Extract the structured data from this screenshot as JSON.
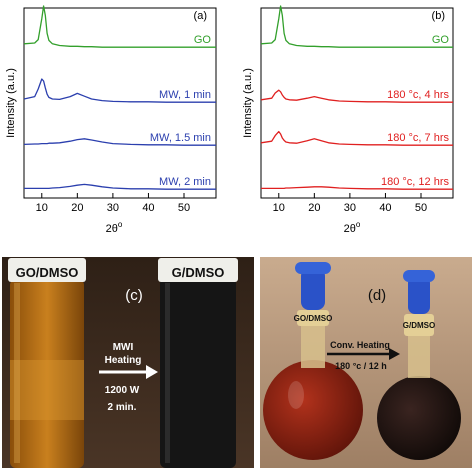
{
  "chart_data": [
    {
      "type": "line",
      "panel_label": "(a)",
      "xlabel": "2θ",
      "xlabel_superscript": "o",
      "ylabel": "Intensity (a.u.)",
      "xlim": [
        5,
        59
      ],
      "xticks": [
        10,
        20,
        30,
        40,
        50
      ],
      "x": [
        5,
        8,
        9,
        10,
        10.5,
        11,
        11.5,
        12,
        13,
        15,
        18,
        20,
        22,
        24,
        27,
        30,
        35,
        40,
        45,
        50,
        55,
        59
      ],
      "series": [
        {
          "name": "GO",
          "color": "#33a02c",
          "values": [
            0.1,
            0.12,
            0.2,
            0.7,
            1.0,
            0.78,
            0.35,
            0.18,
            0.1,
            0.06,
            0.04,
            0.04,
            0.03,
            0.03,
            0.02,
            0.02,
            0.02,
            0.02,
            0.02,
            0.02,
            0.02,
            0.02
          ]
        },
        {
          "name": "MW, 1 min",
          "color": "#2b3fae",
          "values": [
            0.1,
            0.16,
            0.35,
            0.6,
            0.55,
            0.38,
            0.22,
            0.14,
            0.1,
            0.09,
            0.16,
            0.24,
            0.17,
            0.1,
            0.06,
            0.04,
            0.03,
            0.03,
            0.02,
            0.02,
            0.02,
            0.02
          ]
        },
        {
          "name": "MW, 1.5 min",
          "color": "#2b3fae",
          "values": [
            0.04,
            0.05,
            0.05,
            0.06,
            0.06,
            0.06,
            0.06,
            0.07,
            0.07,
            0.08,
            0.12,
            0.16,
            0.18,
            0.15,
            0.1,
            0.06,
            0.04,
            0.03,
            0.03,
            0.02,
            0.02,
            0.02
          ]
        },
        {
          "name": "MW, 2 min",
          "color": "#2b3fae",
          "values": [
            0.04,
            0.04,
            0.04,
            0.04,
            0.04,
            0.04,
            0.04,
            0.04,
            0.05,
            0.06,
            0.09,
            0.12,
            0.14,
            0.12,
            0.08,
            0.05,
            0.03,
            0.03,
            0.02,
            0.02,
            0.02,
            0.02
          ]
        }
      ]
    },
    {
      "type": "line",
      "panel_label": "(b)",
      "xlabel": "2θ",
      "xlabel_superscript": "o",
      "ylabel": "Intensity (a.u.)",
      "xlim": [
        5,
        59
      ],
      "xticks": [
        10,
        20,
        30,
        40,
        50
      ],
      "x": [
        5,
        8,
        9,
        10,
        10.5,
        11,
        11.5,
        12,
        13,
        15,
        18,
        20,
        22,
        24,
        27,
        30,
        35,
        40,
        45,
        50,
        55,
        59
      ],
      "series": [
        {
          "name": "GO",
          "color": "#33a02c",
          "values": [
            0.1,
            0.12,
            0.2,
            0.7,
            1.0,
            0.78,
            0.35,
            0.18,
            0.1,
            0.06,
            0.04,
            0.04,
            0.03,
            0.03,
            0.02,
            0.02,
            0.02,
            0.02,
            0.02,
            0.02,
            0.02,
            0.02
          ]
        },
        {
          "name": "180 °c, 4 hrs",
          "color": "#e02020",
          "values": [
            0.08,
            0.12,
            0.25,
            0.32,
            0.28,
            0.2,
            0.14,
            0.1,
            0.08,
            0.07,
            0.12,
            0.16,
            0.12,
            0.08,
            0.05,
            0.04,
            0.03,
            0.03,
            0.02,
            0.02,
            0.02,
            0.02
          ]
        },
        {
          "name": "180 °c, 7 hrs",
          "color": "#e02020",
          "values": [
            0.08,
            0.12,
            0.26,
            0.36,
            0.3,
            0.2,
            0.14,
            0.1,
            0.08,
            0.07,
            0.13,
            0.18,
            0.13,
            0.08,
            0.05,
            0.04,
            0.03,
            0.03,
            0.02,
            0.02,
            0.02,
            0.02
          ]
        },
        {
          "name": "180 °c, 12 hrs",
          "color": "#e02020",
          "values": [
            0.04,
            0.04,
            0.04,
            0.04,
            0.04,
            0.04,
            0.04,
            0.05,
            0.05,
            0.06,
            0.07,
            0.08,
            0.08,
            0.07,
            0.05,
            0.04,
            0.03,
            0.03,
            0.02,
            0.02,
            0.02,
            0.02
          ]
        }
      ]
    }
  ],
  "photo_c": {
    "panel_label": "(c)",
    "vial_left_label": "GO/DMSO",
    "vial_right_label": "G/DMSO",
    "arrow_title": "MWI",
    "arrow_title2": "Heating",
    "power": "1200 W",
    "time": "2 min.",
    "colors": {
      "left_liquid": "#b06a12",
      "right_liquid": "#141414",
      "background": "#3a2a1e"
    }
  },
  "photo_d": {
    "panel_label": "(d)",
    "flask_left_label": "GO/DMSO",
    "flask_right_label": "G/DMSO",
    "arrow_title": "Conv. Heating",
    "arrow_condition": "180 °c / 12 h",
    "colors": {
      "left_liquid": "#8a1e10",
      "right_liquid": "#1a1210",
      "stopper": "#2a52c8",
      "background": "#b89a7e"
    }
  }
}
